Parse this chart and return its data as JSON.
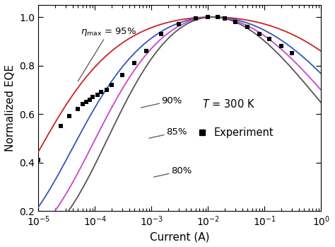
{
  "title": "",
  "xlabel": "Current (A)",
  "ylabel": "Normalized EQE",
  "xlim": [
    1e-05,
    1.0
  ],
  "ylim": [
    0.2,
    1.05
  ],
  "yticks": [
    0.2,
    0.4,
    0.6,
    0.8,
    1.0
  ],
  "temperature_label": "$T$ = 300 K",
  "curves": [
    {
      "eta_max": 0.95,
      "color": "#cc2222",
      "B_scale": 1.0,
      "I_peak": 0.012
    },
    {
      "eta_max": 0.9,
      "color": "#3355bb",
      "B_scale": 1.0,
      "I_peak": 0.012
    },
    {
      "eta_max": 0.85,
      "color": "#cc44cc",
      "B_scale": 1.0,
      "I_peak": 0.012
    },
    {
      "eta_max": 0.8,
      "color": "#555555",
      "B_scale": 1.0,
      "I_peak": 0.012
    }
  ],
  "exp_x": [
    1e-05,
    2.5e-05,
    3.5e-05,
    5e-05,
    6e-05,
    7e-05,
    8e-05,
    9e-05,
    0.00011,
    0.00013,
    0.00016,
    0.0002,
    0.0003,
    0.0005,
    0.0008,
    0.0015,
    0.003,
    0.006,
    0.01,
    0.015,
    0.02,
    0.03,
    0.05,
    0.08,
    0.12,
    0.2,
    0.3
  ],
  "exp_y": [
    0.41,
    0.55,
    0.59,
    0.62,
    0.64,
    0.65,
    0.66,
    0.67,
    0.68,
    0.69,
    0.7,
    0.72,
    0.76,
    0.81,
    0.86,
    0.93,
    0.97,
    0.995,
    1.0,
    1.0,
    0.995,
    0.98,
    0.96,
    0.93,
    0.91,
    0.88,
    0.85
  ],
  "background_color": "#ffffff"
}
